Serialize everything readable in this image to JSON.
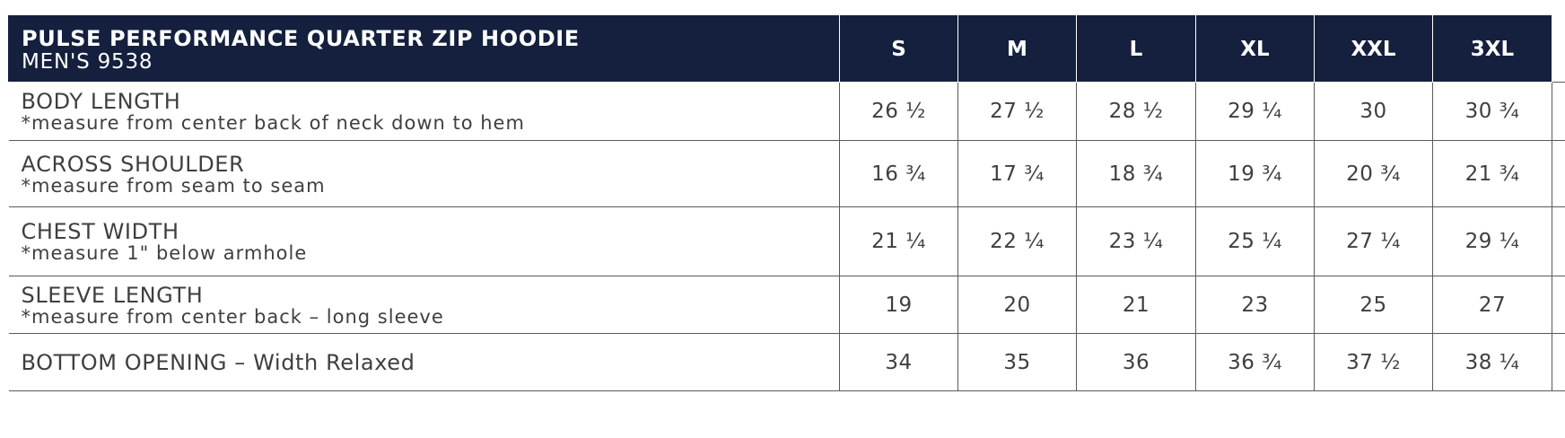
{
  "header": {
    "title": "PULSE PERFORMANCE QUARTER ZIP HOODIE",
    "subtitle": "MEN'S 9538",
    "sizes": [
      "S",
      "M",
      "L",
      "XL",
      "XXL",
      "3XL"
    ]
  },
  "rows": [
    {
      "label": "BODY LENGTH",
      "note": "*measure from center back of neck down to hem",
      "values": [
        "26 ½",
        "27 ½",
        "28 ½",
        "29 ¼",
        "30",
        "30 ¾"
      ]
    },
    {
      "label": "ACROSS SHOULDER",
      "note": "*measure from seam to seam",
      "values": [
        "16 ¾",
        "17 ¾",
        "18 ¾",
        "19 ¾",
        "20 ¾",
        "21 ¾"
      ]
    },
    {
      "label": "CHEST WIDTH",
      "note": "*measure 1\" below armhole",
      "values": [
        "21 ¼",
        "22 ¼",
        "23 ¼",
        "25 ¼",
        "27 ¼",
        "29 ¼"
      ]
    },
    {
      "label": "SLEEVE LENGTH",
      "note": "*measure from center back – long sleeve",
      "values": [
        "19",
        "20",
        "21",
        "23",
        "25",
        "27"
      ]
    },
    {
      "label": "BOTTOM OPENING – Width Relaxed",
      "note": "",
      "values": [
        "34",
        "35",
        "36",
        "36 ¾",
        "37 ½",
        "38 ¼"
      ]
    }
  ],
  "colors": {
    "header_background": "#14203d",
    "header_text": "#ffffff",
    "body_text": "#3f3f3f",
    "grid_lines": "#5a5a5a"
  }
}
